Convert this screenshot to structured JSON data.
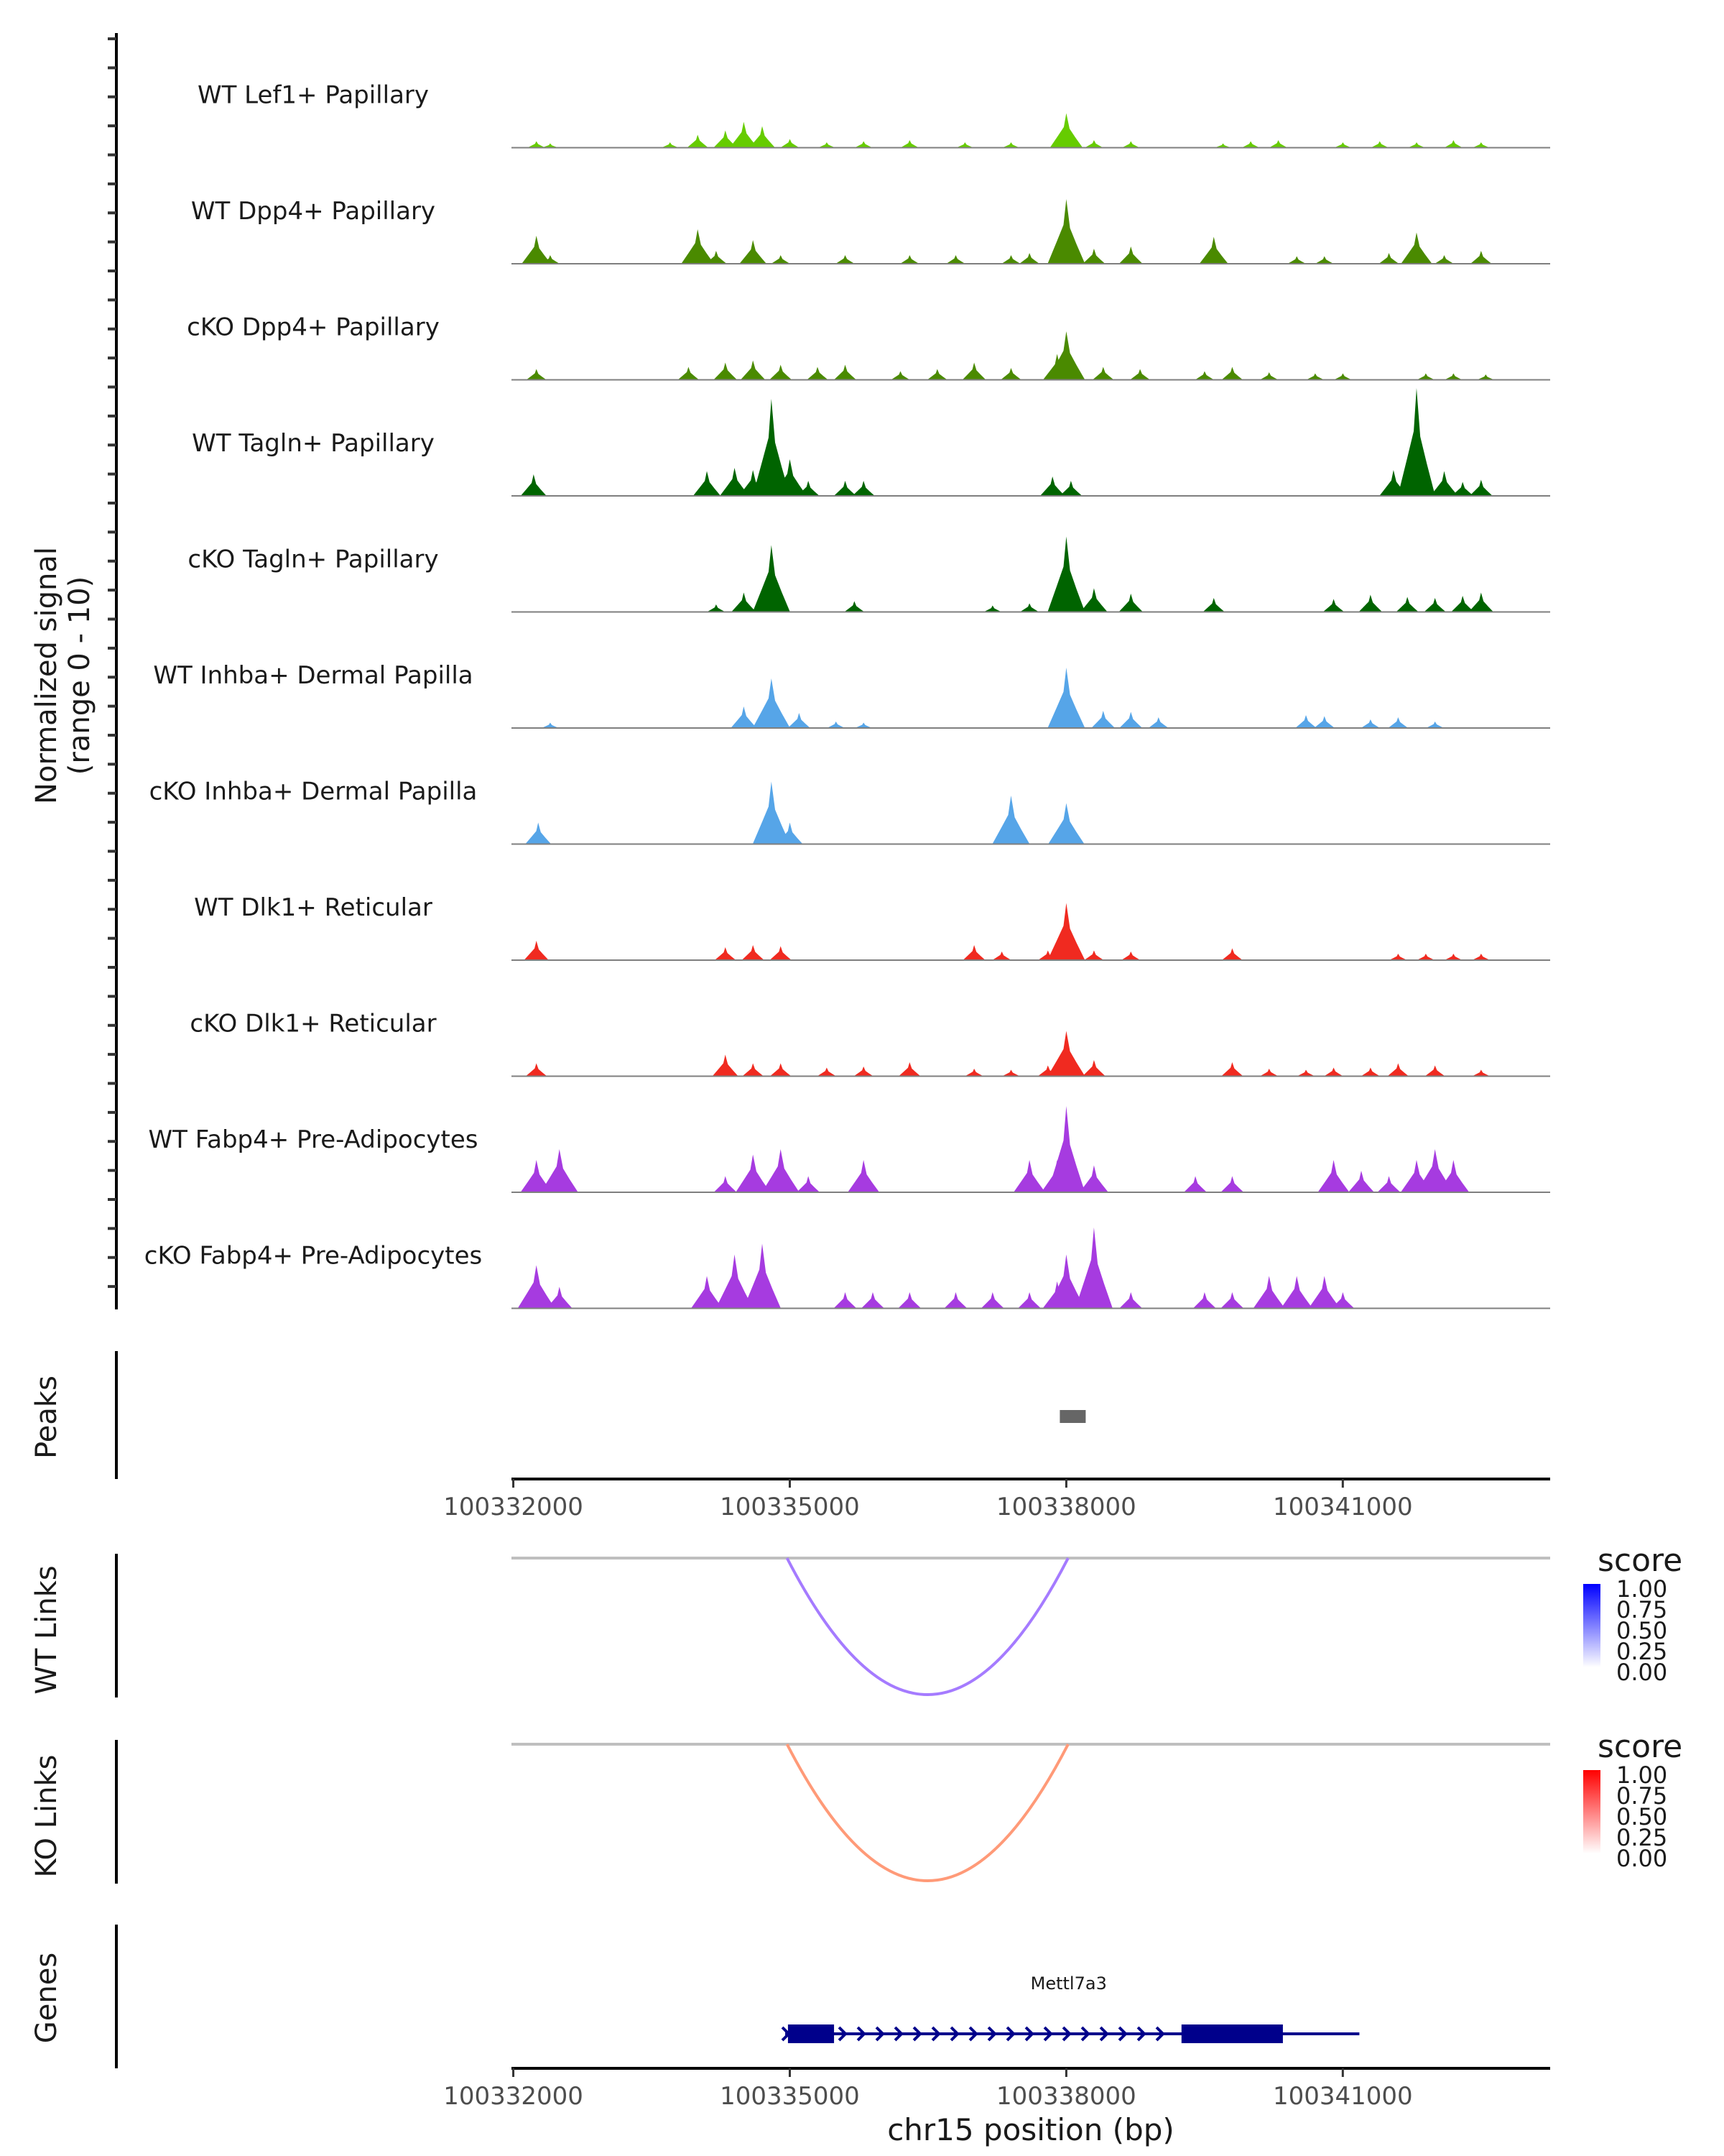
{
  "chart_data": {
    "type": "area",
    "title": "",
    "ylabel": "Normalized signal (range 0 - 10)",
    "ylabel_lines": [
      "Normalized signal",
      "(range 0 - 10)"
    ],
    "xlabel": "chr15 position (bp)",
    "xlim": [
      100331980,
      100343250
    ],
    "ylim": [
      0,
      10
    ],
    "x_ticks": [
      100332000,
      100335000,
      100338000,
      100341000
    ],
    "x_tick_labels": [
      "100332000",
      "100335000",
      "100338000",
      "100341000"
    ],
    "tracks": [
      {
        "name": "WT Lef1+ Papillary",
        "color": "#66CC00",
        "peaks": [
          [
            100332250,
            0.6
          ],
          [
            100332400,
            0.4
          ],
          [
            100333700,
            0.5
          ],
          [
            100334000,
            1.2
          ],
          [
            100334300,
            1.6
          ],
          [
            100334500,
            2.4
          ],
          [
            100334700,
            2.0
          ],
          [
            100335000,
            0.8
          ],
          [
            100335400,
            0.5
          ],
          [
            100335800,
            0.6
          ],
          [
            100336300,
            0.7
          ],
          [
            100336900,
            0.5
          ],
          [
            100337400,
            0.5
          ],
          [
            100338000,
            3.2
          ],
          [
            100338300,
            0.7
          ],
          [
            100338700,
            0.6
          ],
          [
            100339700,
            0.4
          ],
          [
            100340000,
            0.6
          ],
          [
            100340300,
            0.7
          ],
          [
            100341000,
            0.5
          ],
          [
            100341400,
            0.6
          ],
          [
            100341800,
            0.5
          ],
          [
            100342200,
            0.7
          ],
          [
            100342500,
            0.5
          ]
        ]
      },
      {
        "name": "WT Dpp4+ Papillary",
        "color": "#4A8A00",
        "peaks": [
          [
            100332250,
            2.6
          ],
          [
            100332400,
            0.8
          ],
          [
            100334000,
            3.2
          ],
          [
            100334200,
            1.2
          ],
          [
            100334600,
            2.2
          ],
          [
            100334900,
            0.8
          ],
          [
            100335600,
            0.8
          ],
          [
            100336300,
            0.8
          ],
          [
            100336800,
            0.8
          ],
          [
            100337400,
            0.8
          ],
          [
            100337600,
            1.0
          ],
          [
            100338000,
            6.0
          ],
          [
            100338300,
            1.4
          ],
          [
            100338700,
            1.6
          ],
          [
            100339600,
            2.5
          ],
          [
            100340500,
            0.7
          ],
          [
            100340800,
            0.7
          ],
          [
            100341500,
            1.0
          ],
          [
            100341800,
            2.9
          ],
          [
            100342100,
            0.8
          ],
          [
            100342500,
            1.2
          ]
        ]
      },
      {
        "name": "cKO Dpp4+ Papillary",
        "color": "#4A8A00",
        "peaks": [
          [
            100332250,
            1.0
          ],
          [
            100333900,
            1.2
          ],
          [
            100334300,
            1.6
          ],
          [
            100334600,
            1.8
          ],
          [
            100334900,
            1.4
          ],
          [
            100335300,
            1.2
          ],
          [
            100335600,
            1.4
          ],
          [
            100336200,
            0.8
          ],
          [
            100336600,
            1.0
          ],
          [
            100337000,
            1.6
          ],
          [
            100337400,
            1.1
          ],
          [
            100337900,
            2.4
          ],
          [
            100338000,
            4.5
          ],
          [
            100338400,
            1.2
          ],
          [
            100338800,
            1.0
          ],
          [
            100339500,
            0.8
          ],
          [
            100339800,
            1.2
          ],
          [
            100340200,
            0.7
          ],
          [
            100340700,
            0.6
          ],
          [
            100341000,
            0.6
          ],
          [
            100341900,
            0.6
          ],
          [
            100342200,
            0.6
          ],
          [
            100342550,
            0.5
          ]
        ]
      },
      {
        "name": "WT Tagln+ Papillary",
        "color": "#006400",
        "peaks": [
          [
            100332220,
            2.0
          ],
          [
            100334100,
            2.3
          ],
          [
            100334400,
            2.6
          ],
          [
            100334600,
            2.4
          ],
          [
            100334800,
            9.0
          ],
          [
            100335000,
            3.4
          ],
          [
            100335200,
            1.4
          ],
          [
            100335600,
            1.4
          ],
          [
            100335800,
            1.4
          ],
          [
            100337850,
            1.8
          ],
          [
            100338050,
            1.4
          ],
          [
            100341550,
            2.4
          ],
          [
            100341800,
            10.0
          ],
          [
            100342100,
            2.3
          ],
          [
            100342300,
            1.3
          ],
          [
            100342500,
            1.5
          ]
        ]
      },
      {
        "name": "cKO Tagln+ Papillary",
        "color": "#006400",
        "peaks": [
          [
            100334200,
            0.7
          ],
          [
            100334500,
            1.8
          ],
          [
            100334800,
            6.2
          ],
          [
            100335700,
            1.0
          ],
          [
            100337200,
            0.6
          ],
          [
            100337600,
            0.8
          ],
          [
            100338000,
            7.0
          ],
          [
            100338300,
            2.2
          ],
          [
            100338700,
            1.7
          ],
          [
            100339600,
            1.3
          ],
          [
            100340900,
            1.2
          ],
          [
            100341300,
            1.6
          ],
          [
            100341700,
            1.4
          ],
          [
            100342000,
            1.3
          ],
          [
            100342300,
            1.5
          ],
          [
            100342500,
            1.8
          ]
        ]
      },
      {
        "name": "WT Inhba+ Dermal Papilla",
        "color": "#56A5E8",
        "peaks": [
          [
            100332400,
            0.5
          ],
          [
            100334500,
            2.0
          ],
          [
            100334800,
            4.6
          ],
          [
            100335100,
            1.4
          ],
          [
            100335500,
            0.6
          ],
          [
            100335800,
            0.5
          ],
          [
            100338000,
            5.6
          ],
          [
            100338400,
            1.6
          ],
          [
            100338700,
            1.5
          ],
          [
            100339000,
            1.0
          ],
          [
            100340600,
            1.2
          ],
          [
            100340800,
            1.1
          ],
          [
            100341300,
            0.8
          ],
          [
            100341600,
            1.0
          ],
          [
            100342000,
            0.6
          ]
        ]
      },
      {
        "name": "cKO Inhba+ Dermal Papilla",
        "color": "#56A5E8",
        "peaks": [
          [
            100332270,
            2.0
          ],
          [
            100334800,
            5.8
          ],
          [
            100335000,
            2.0
          ],
          [
            100337400,
            4.5
          ],
          [
            100338000,
            3.8
          ]
        ]
      },
      {
        "name": "WT Dlk1+ Reticular",
        "color": "#F02A20",
        "peaks": [
          [
            100332250,
            1.8
          ],
          [
            100334300,
            1.2
          ],
          [
            100334600,
            1.4
          ],
          [
            100334900,
            1.3
          ],
          [
            100337000,
            1.4
          ],
          [
            100337300,
            0.8
          ],
          [
            100337800,
            0.9
          ],
          [
            100338000,
            5.3
          ],
          [
            100338300,
            0.9
          ],
          [
            100338700,
            0.8
          ],
          [
            100339800,
            1.1
          ],
          [
            100341600,
            0.6
          ],
          [
            100341900,
            0.6
          ],
          [
            100342200,
            0.6
          ],
          [
            100342500,
            0.6
          ]
        ]
      },
      {
        "name": "cKO Dlk1+ Reticular",
        "color": "#F02A20",
        "peaks": [
          [
            100332250,
            1.2
          ],
          [
            100334300,
            2.0
          ],
          [
            100334600,
            1.2
          ],
          [
            100334900,
            1.2
          ],
          [
            100335400,
            0.8
          ],
          [
            100335800,
            0.9
          ],
          [
            100336300,
            1.3
          ],
          [
            100337000,
            0.7
          ],
          [
            100337400,
            0.6
          ],
          [
            100337800,
            1.0
          ],
          [
            100338000,
            4.2
          ],
          [
            100338300,
            1.5
          ],
          [
            100339800,
            1.3
          ],
          [
            100340200,
            0.7
          ],
          [
            100340600,
            0.6
          ],
          [
            100340900,
            0.8
          ],
          [
            100341300,
            0.8
          ],
          [
            100341600,
            1.2
          ],
          [
            100342000,
            1.0
          ],
          [
            100342500,
            0.6
          ]
        ]
      },
      {
        "name": "WT Fabp4+ Pre-Adipocytes",
        "color": "#A63BE0",
        "peaks": [
          [
            100332250,
            3.0
          ],
          [
            100332500,
            4.0
          ],
          [
            100334300,
            1.5
          ],
          [
            100334600,
            3.5
          ],
          [
            100334900,
            4.0
          ],
          [
            100335200,
            1.5
          ],
          [
            100335800,
            3.0
          ],
          [
            100337600,
            3.0
          ],
          [
            100337900,
            3.0
          ],
          [
            100338000,
            8.0
          ],
          [
            100338300,
            2.5
          ],
          [
            100339400,
            1.5
          ],
          [
            100339800,
            1.5
          ],
          [
            100340900,
            3.0
          ],
          [
            100341200,
            2.0
          ],
          [
            100341500,
            1.5
          ],
          [
            100341800,
            3.0
          ],
          [
            100342000,
            4.0
          ],
          [
            100342200,
            3.0
          ]
        ]
      },
      {
        "name": "cKO Fabp4+ Pre-Adipocytes",
        "color": "#A63BE0",
        "peaks": [
          [
            100332250,
            4.0
          ],
          [
            100332500,
            2.0
          ],
          [
            100334100,
            3.0
          ],
          [
            100334400,
            5.0
          ],
          [
            100334700,
            6.0
          ],
          [
            100335600,
            1.5
          ],
          [
            100335900,
            1.5
          ],
          [
            100336300,
            1.5
          ],
          [
            100336800,
            1.5
          ],
          [
            100337200,
            1.5
          ],
          [
            100337600,
            1.5
          ],
          [
            100337900,
            2.5
          ],
          [
            100338000,
            5.0
          ],
          [
            100338300,
            7.5
          ],
          [
            100338700,
            1.5
          ],
          [
            100339500,
            1.5
          ],
          [
            100339800,
            1.5
          ],
          [
            100340200,
            3.0
          ],
          [
            100340500,
            3.0
          ],
          [
            100340800,
            3.0
          ],
          [
            100341000,
            1.5
          ]
        ]
      }
    ],
    "peaks_track": {
      "label": "Peaks",
      "regions": [
        [
          100337930,
          100338080
        ]
      ],
      "color": "#666666"
    },
    "links": [
      {
        "label": "WT Links",
        "start": 100334970,
        "end": 100338020,
        "score": 0.55,
        "color": "#A57BFF",
        "legend": {
          "title": "score",
          "ticks": [
            "1.00",
            "0.75",
            "0.50",
            "0.25",
            "0.00"
          ],
          "high": "#0000FF",
          "low": "#FFFFFF"
        }
      },
      {
        "label": "KO Links",
        "start": 100334970,
        "end": 100338020,
        "score": 0.55,
        "color": "#FF9A78",
        "legend": {
          "title": "score",
          "ticks": [
            "1.00",
            "0.75",
            "0.50",
            "0.25",
            "0.00"
          ],
          "high": "#FF0000",
          "low": "#FFFFFF"
        }
      }
    ],
    "genes_track": {
      "label": "Genes",
      "gene": {
        "name": "Mettl7a3",
        "start": 100334950,
        "end": 100341180,
        "strand": "+",
        "exons": [
          [
            100334980,
            100335480
          ],
          [
            100339250,
            100340350
          ]
        ],
        "color": "#00008B"
      }
    }
  }
}
